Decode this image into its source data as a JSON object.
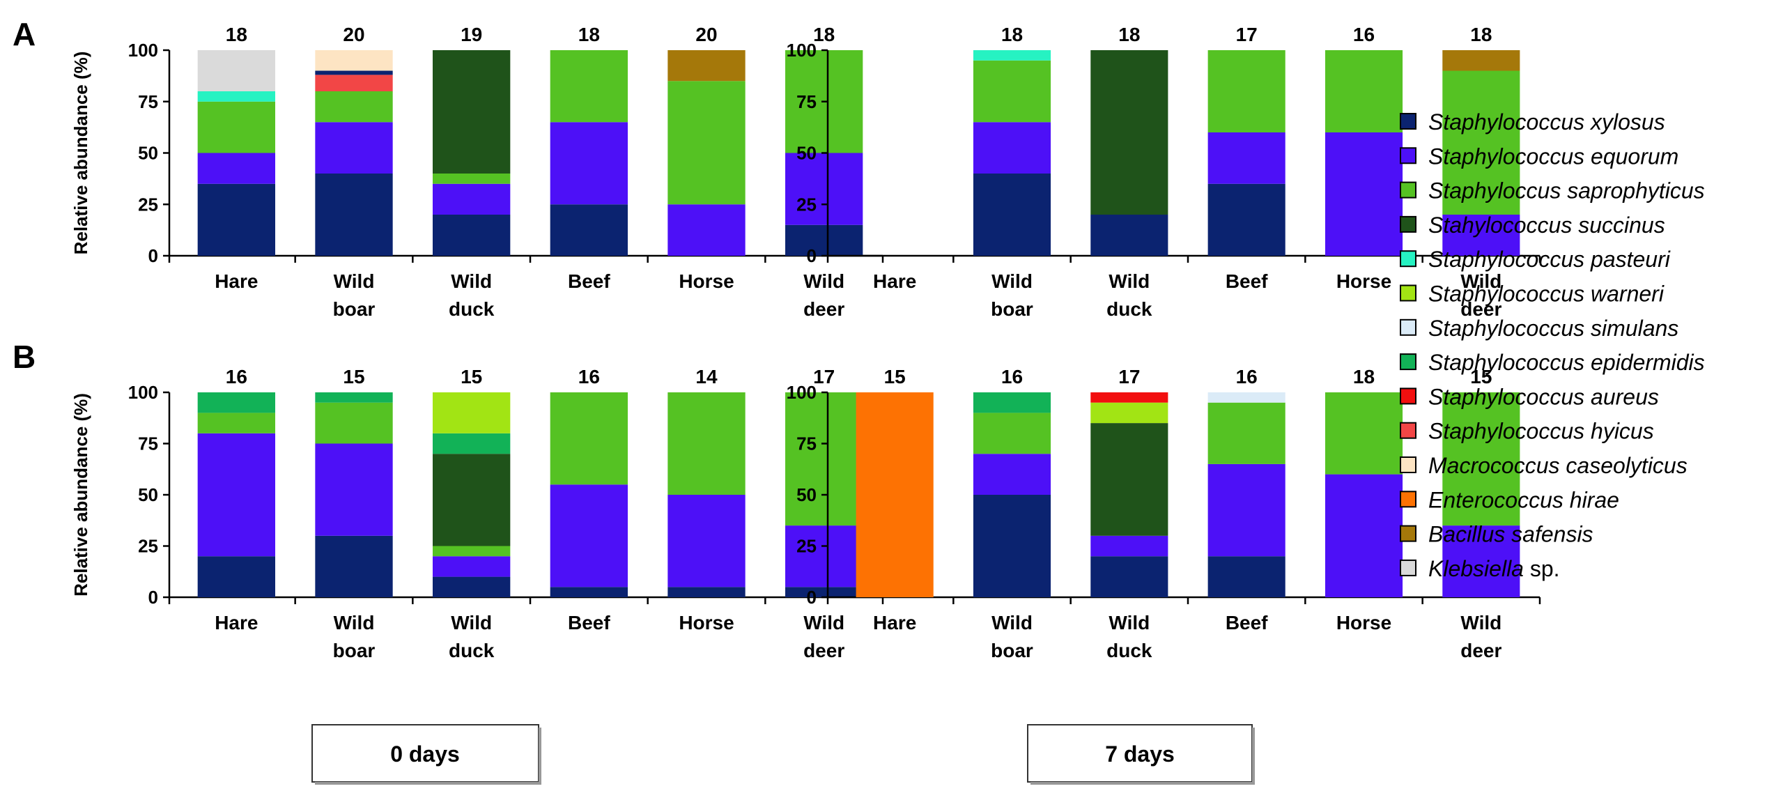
{
  "panel_labels": [
    "A",
    "B"
  ],
  "day_labels": [
    "0 days",
    "7 days"
  ],
  "legend": [
    {
      "key": "xylosus",
      "label": "Staphylococcus xylosus",
      "color": "#0b2370"
    },
    {
      "key": "equorum",
      "label": "Staphylococcus equorum",
      "color": "#4d10f7"
    },
    {
      "key": "saprophyticus",
      "label": "Staphyloccus saprophyticus",
      "color": "#55c223"
    },
    {
      "key": "succinus",
      "label": "Stahylococcus succinus",
      "color": "#1f531a"
    },
    {
      "key": "pasteuri",
      "label": "Staphylococcus pasteuri",
      "color": "#26f2c2"
    },
    {
      "key": "warneri",
      "label": "Staphylococcus warneri",
      "color": "#a2e414"
    },
    {
      "key": "simulans",
      "label": "Staphylococcus simulans",
      "color": "#dbebf7"
    },
    {
      "key": "epidermidis",
      "label": "Staphylococcus epidermidis",
      "color": "#12b257"
    },
    {
      "key": "aureus",
      "label": "Staphylococcus aureus",
      "color": "#f20f0f"
    },
    {
      "key": "hyicus",
      "label": "Staphylococcus hyicus",
      "color": "#f24646"
    },
    {
      "key": "caseolyticus",
      "label": "Macrococcus caseolyticus",
      "color": "#fde4c3"
    },
    {
      "key": "hirae",
      "label": "Enterococcus hirae",
      "color": "#fd7203"
    },
    {
      "key": "safensis",
      "label": "Bacillus safensis",
      "color": "#a5780a"
    },
    {
      "key": "klebsiella",
      "label": "Klebsiella",
      "label_suffix": " sp.",
      "color": "#dadada"
    }
  ],
  "chart_data": [
    {
      "id": "A-0days",
      "panel": "A",
      "day": "0 days",
      "type": "bar",
      "stacked": true,
      "ylabel": "Relative abundance (%)",
      "ylim": [
        0,
        100
      ],
      "yticks": [
        0,
        25,
        50,
        75,
        100
      ],
      "categories": [
        "Hare",
        "Wild boar",
        "Wild duck",
        "Beef",
        "Horse",
        "Wild deer"
      ],
      "counts": [
        "18",
        "20",
        "19",
        "18",
        "20",
        "18"
      ],
      "bars": [
        [
          {
            "key": "xylosus",
            "value": 35
          },
          {
            "key": "equorum",
            "value": 15
          },
          {
            "key": "saprophyticus",
            "value": 25
          },
          {
            "key": "pasteuri",
            "value": 5
          },
          {
            "key": "klebsiella",
            "value": 20
          }
        ],
        [
          {
            "key": "xylosus",
            "value": 40
          },
          {
            "key": "equorum",
            "value": 25
          },
          {
            "key": "saprophyticus",
            "value": 15
          },
          {
            "key": "hyicus",
            "value": 8
          },
          {
            "key": "xylosus",
            "value": 2
          },
          {
            "key": "caseolyticus",
            "value": 10
          }
        ],
        [
          {
            "key": "xylosus",
            "value": 20
          },
          {
            "key": "equorum",
            "value": 15
          },
          {
            "key": "saprophyticus",
            "value": 5
          },
          {
            "key": "succinus",
            "value": 60
          }
        ],
        [
          {
            "key": "xylosus",
            "value": 25
          },
          {
            "key": "equorum",
            "value": 40
          },
          {
            "key": "saprophyticus",
            "value": 35
          }
        ],
        [
          {
            "key": "equorum",
            "value": 25
          },
          {
            "key": "saprophyticus",
            "value": 60
          },
          {
            "key": "safensis",
            "value": 15
          }
        ],
        [
          {
            "key": "xylosus",
            "value": 15
          },
          {
            "key": "equorum",
            "value": 35
          },
          {
            "key": "saprophyticus",
            "value": 50
          }
        ]
      ]
    },
    {
      "id": "A-7days",
      "panel": "A",
      "day": "7 days",
      "type": "bar",
      "stacked": true,
      "ylabel": "",
      "ylim": [
        0,
        100
      ],
      "yticks": [
        0,
        25,
        50,
        75,
        100
      ],
      "categories": [
        "Hare",
        "Wild boar",
        "Wild duck",
        "Beef",
        "Horse",
        "Wild deer"
      ],
      "counts": [
        "",
        "18",
        "18",
        "17",
        "16",
        "18"
      ],
      "bars": [
        [],
        [
          {
            "key": "xylosus",
            "value": 40
          },
          {
            "key": "equorum",
            "value": 25
          },
          {
            "key": "saprophyticus",
            "value": 30
          },
          {
            "key": "pasteuri",
            "value": 5
          }
        ],
        [
          {
            "key": "xylosus",
            "value": 20
          },
          {
            "key": "succinus",
            "value": 80
          }
        ],
        [
          {
            "key": "xylosus",
            "value": 35
          },
          {
            "key": "equorum",
            "value": 25
          },
          {
            "key": "saprophyticus",
            "value": 40
          }
        ],
        [
          {
            "key": "equorum",
            "value": 60
          },
          {
            "key": "saprophyticus",
            "value": 40
          }
        ],
        [
          {
            "key": "equorum",
            "value": 20
          },
          {
            "key": "saprophyticus",
            "value": 70
          },
          {
            "key": "safensis",
            "value": 10
          }
        ]
      ]
    },
    {
      "id": "B-0days",
      "panel": "B",
      "day": "0 days",
      "type": "bar",
      "stacked": true,
      "ylabel": "Relative abundance (%)",
      "ylim": [
        0,
        100
      ],
      "yticks": [
        0,
        25,
        50,
        75,
        100
      ],
      "categories": [
        "Hare",
        "Wild boar",
        "Wild duck",
        "Beef",
        "Horse",
        "Wild deer"
      ],
      "counts": [
        "16",
        "15",
        "15",
        "16",
        "14",
        "17"
      ],
      "bars": [
        [
          {
            "key": "xylosus",
            "value": 20
          },
          {
            "key": "equorum",
            "value": 60
          },
          {
            "key": "saprophyticus",
            "value": 10
          },
          {
            "key": "epidermidis",
            "value": 10
          }
        ],
        [
          {
            "key": "xylosus",
            "value": 30
          },
          {
            "key": "equorum",
            "value": 45
          },
          {
            "key": "saprophyticus",
            "value": 20
          },
          {
            "key": "epidermidis",
            "value": 5
          }
        ],
        [
          {
            "key": "xylosus",
            "value": 10
          },
          {
            "key": "equorum",
            "value": 10
          },
          {
            "key": "saprophyticus",
            "value": 5
          },
          {
            "key": "succinus",
            "value": 45
          },
          {
            "key": "epidermidis",
            "value": 10
          },
          {
            "key": "warneri",
            "value": 20
          }
        ],
        [
          {
            "key": "xylosus",
            "value": 5
          },
          {
            "key": "equorum",
            "value": 50
          },
          {
            "key": "saprophyticus",
            "value": 45
          }
        ],
        [
          {
            "key": "xylosus",
            "value": 5
          },
          {
            "key": "equorum",
            "value": 45
          },
          {
            "key": "saprophyticus",
            "value": 50
          }
        ],
        [
          {
            "key": "xylosus",
            "value": 5
          },
          {
            "key": "equorum",
            "value": 30
          },
          {
            "key": "saprophyticus",
            "value": 65
          }
        ]
      ]
    },
    {
      "id": "B-7days",
      "panel": "B",
      "day": "7 days",
      "type": "bar",
      "stacked": true,
      "ylabel": "",
      "ylim": [
        0,
        100
      ],
      "yticks": [
        0,
        25,
        50,
        75,
        100
      ],
      "categories": [
        "Hare",
        "Wild boar",
        "Wild duck",
        "Beef",
        "Horse",
        "Wild deer"
      ],
      "counts": [
        "15",
        "16",
        "17",
        "16",
        "18",
        "15"
      ],
      "bars": [
        [
          {
            "key": "hirae",
            "value": 100
          }
        ],
        [
          {
            "key": "xylosus",
            "value": 50
          },
          {
            "key": "equorum",
            "value": 20
          },
          {
            "key": "saprophyticus",
            "value": 20
          },
          {
            "key": "epidermidis",
            "value": 10
          }
        ],
        [
          {
            "key": "xylosus",
            "value": 20
          },
          {
            "key": "equorum",
            "value": 10
          },
          {
            "key": "succinus",
            "value": 55
          },
          {
            "key": "warneri",
            "value": 10
          },
          {
            "key": "aureus",
            "value": 5
          }
        ],
        [
          {
            "key": "xylosus",
            "value": 20
          },
          {
            "key": "equorum",
            "value": 45
          },
          {
            "key": "saprophyticus",
            "value": 30
          },
          {
            "key": "simulans",
            "value": 5
          }
        ],
        [
          {
            "key": "equorum",
            "value": 60
          },
          {
            "key": "saprophyticus",
            "value": 40
          }
        ],
        [
          {
            "key": "equorum",
            "value": 35
          },
          {
            "key": "saprophyticus",
            "value": 65
          }
        ]
      ]
    }
  ]
}
